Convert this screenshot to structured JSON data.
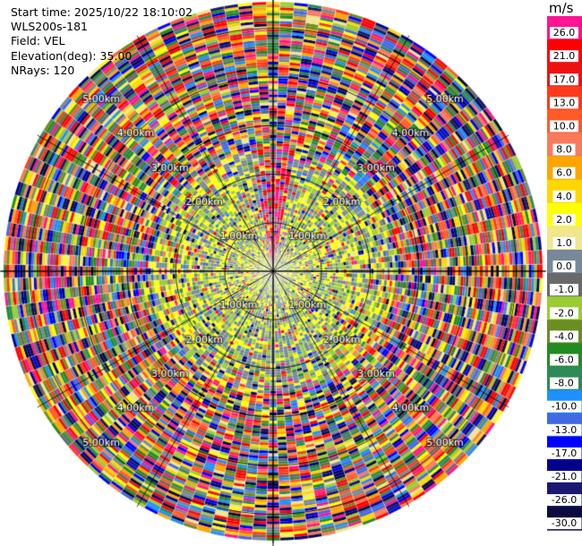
{
  "header": {
    "start_time": "Start time: 2025/10/22 18:10:02",
    "instrument": "WLS200s-181",
    "field": "Field: VEL",
    "elevation": "Elevation(deg): 35.00",
    "nrays": "NRays: 120"
  },
  "colorbar": {
    "unit": "m/s",
    "levels": [
      {
        "label": "26.0",
        "color": "#ff1493"
      },
      {
        "label": "21.0",
        "color": "#ff0000"
      },
      {
        "label": "17.0",
        "color": "#ee1111"
      },
      {
        "label": "13.0",
        "color": "#ff3a1a"
      },
      {
        "label": "10.0",
        "color": "#ff5a2a"
      },
      {
        "label": "8.0",
        "color": "#f97a5a"
      },
      {
        "label": "6.0",
        "color": "#ffa500"
      },
      {
        "label": "4.0",
        "color": "#ffd700"
      },
      {
        "label": "2.0",
        "color": "#ffff00"
      },
      {
        "label": "1.0",
        "color": "#f0e68c"
      },
      {
        "label": "0.0",
        "color": "#778899"
      },
      {
        "label": "-1.0",
        "color": "#696969"
      },
      {
        "label": "-2.0",
        "color": "#9acd32"
      },
      {
        "label": "-4.0",
        "color": "#6b8e23"
      },
      {
        "label": "-6.0",
        "color": "#228b22"
      },
      {
        "label": "-8.0",
        "color": "#2e8b57"
      },
      {
        "label": "-10.0",
        "color": "#1e90ff"
      },
      {
        "label": "-13.0",
        "color": "#4169e1"
      },
      {
        "label": "-17.0",
        "color": "#0000ff"
      },
      {
        "label": "-21.0",
        "color": "#00008b"
      },
      {
        "label": "-26.0",
        "color": "#191970"
      },
      {
        "label": "-30.0",
        "color": "#0b0b40"
      }
    ]
  },
  "chart_data": {
    "type": "heatmap",
    "title": "",
    "field": "VEL",
    "nrays": 120,
    "elevation_deg": 35.0,
    "range_rings_km": [
      1.0,
      2.0,
      3.0,
      4.0,
      5.0
    ],
    "max_range_km": 5.6,
    "ring_labels": [
      {
        "text": "1.00km",
        "ring_km": 1.0
      },
      {
        "text": "2.00km",
        "ring_km": 2.0
      },
      {
        "text": "3.00km",
        "ring_km": 3.0
      },
      {
        "text": "4.00km",
        "ring_km": 4.0
      },
      {
        "text": "5.00km",
        "ring_km": 5.0
      }
    ],
    "spoke_step_deg": 30,
    "inner_range_km": 2.5,
    "inner_azimuth_bias": {
      "north_sector": {
        "az_range_deg": [
          -10,
          10
        ],
        "dominant_values_mps": [
          21.0,
          26.0,
          0.0
        ]
      },
      "east_sector": {
        "az_range_deg": [
          20,
          160
        ],
        "dominant_values_mps": [
          -2.0,
          0.0,
          2.0
        ]
      },
      "west_sector": {
        "az_range_deg": [
          200,
          340
        ],
        "dominant_values_mps": [
          2.0,
          0.0,
          -2.0
        ]
      }
    },
    "outer_distribution": "random across colorbar levels (noise)"
  }
}
